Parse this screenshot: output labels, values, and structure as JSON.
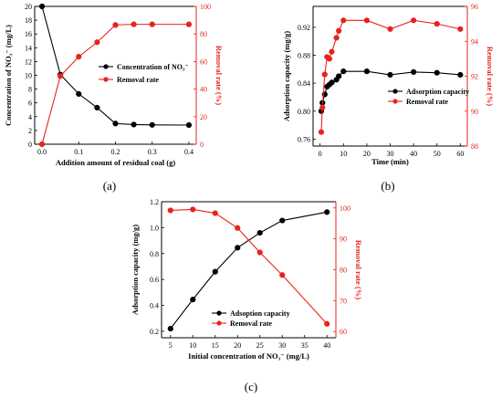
{
  "chart_data": [
    {
      "type": "line",
      "panel_label": "(a)",
      "xlabel": "Addition amount of residual coal (g)",
      "ylabel_left": "Concentration of NO₃⁻ (mg/L)",
      "ylabel_right": "Removal rate (%)",
      "xlim": [
        -0.02,
        0.42
      ],
      "ylim_left": [
        0,
        20
      ],
      "ylim_right": [
        0,
        100
      ],
      "xticks": [
        "0.0",
        "0.1",
        "0.2",
        "0.3",
        "0.4"
      ],
      "yticks_left": [
        "0",
        "2",
        "4",
        "6",
        "8",
        "10",
        "12",
        "14",
        "16",
        "18",
        "20"
      ],
      "yticks_right": [
        "0",
        "20",
        "40",
        "60",
        "80",
        "100"
      ],
      "legend_position": "center-right",
      "series": [
        {
          "name": "Concentration of NO₃⁻",
          "axis": "left",
          "color": "#000000",
          "x": [
            0,
            0.05,
            0.1,
            0.15,
            0.2,
            0.25,
            0.3,
            0.4
          ],
          "y": [
            20,
            10.1,
            7.3,
            5.3,
            3.0,
            2.85,
            2.8,
            2.78
          ]
        },
        {
          "name": "Removal rate",
          "axis": "right",
          "color": "#e8221c",
          "x": [
            0,
            0.05,
            0.1,
            0.15,
            0.2,
            0.25,
            0.3,
            0.4
          ],
          "y": [
            0,
            49.5,
            63.5,
            74,
            86.5,
            87,
            87,
            87
          ]
        }
      ]
    },
    {
      "type": "line",
      "panel_label": "(b)",
      "xlabel": "Time (min)",
      "ylabel_left": "Adsorption capacity (mg/g)",
      "ylabel_right": "Removal rate (%)",
      "xlim": [
        -3,
        63
      ],
      "ylim_left": [
        0.75,
        0.95
      ],
      "ylim_right": [
        88,
        96
      ],
      "xticks": [
        "0",
        "10",
        "20",
        "30",
        "40",
        "50",
        "60"
      ],
      "yticks_left": [
        "0.76",
        "0.80",
        "0.84",
        "0.88",
        "0.92"
      ],
      "yticks_right": [
        "88",
        "90",
        "92",
        "94",
        "96"
      ],
      "legend_position": "center-right",
      "series": [
        {
          "name": "Adsorption capacity",
          "axis": "left",
          "color": "#000000",
          "x": [
            0.5,
            1,
            2,
            3,
            4,
            5,
            7,
            8,
            10,
            20,
            30,
            40,
            50,
            60
          ],
          "y": [
            0.8,
            0.812,
            0.824,
            0.835,
            0.838,
            0.841,
            0.845,
            0.85,
            0.857,
            0.857,
            0.852,
            0.856,
            0.855,
            0.852
          ]
        },
        {
          "name": "Removal rate",
          "axis": "right",
          "color": "#e8221c",
          "x": [
            0.5,
            1,
            2,
            3,
            4,
            5,
            7,
            8,
            10,
            20,
            30,
            40,
            50,
            60
          ],
          "y": [
            88.8,
            90.2,
            92.1,
            93.1,
            93.0,
            93.4,
            94.2,
            94.6,
            95.2,
            95.2,
            94.7,
            95.2,
            95.0,
            94.7
          ]
        }
      ]
    },
    {
      "type": "line",
      "panel_label": "(c)",
      "xlabel": "Initial concentration of NO₃⁻ (mg/L)",
      "ylabel_left": "Adsorption capacity (mg/g)",
      "ylabel_right": "Removal rate (%)",
      "xlim": [
        3,
        42
      ],
      "ylim_left": [
        0.15,
        1.2
      ],
      "ylim_right": [
        58,
        102
      ],
      "xticks": [
        "5",
        "10",
        "15",
        "20",
        "25",
        "30",
        "35",
        "40"
      ],
      "yticks_left": [
        "0.2",
        "0.4",
        "0.6",
        "0.8",
        "1.0",
        "1.2"
      ],
      "yticks_right": [
        "60",
        "70",
        "80",
        "90",
        "100"
      ],
      "legend_position": "bottom-left",
      "series": [
        {
          "name": "Adsoption capacity",
          "axis": "left",
          "color": "#000000",
          "x": [
            5,
            10,
            15,
            20,
            25,
            30,
            40
          ],
          "y": [
            0.22,
            0.445,
            0.66,
            0.845,
            0.96,
            1.055,
            1.12
          ]
        },
        {
          "name": "Removal rate",
          "axis": "right",
          "color": "#e8221c",
          "x": [
            5,
            10,
            15,
            20,
            25,
            30,
            40
          ],
          "y": [
            99.2,
            99.5,
            98.3,
            93.5,
            85.6,
            78.3,
            62.5
          ]
        }
      ]
    }
  ]
}
